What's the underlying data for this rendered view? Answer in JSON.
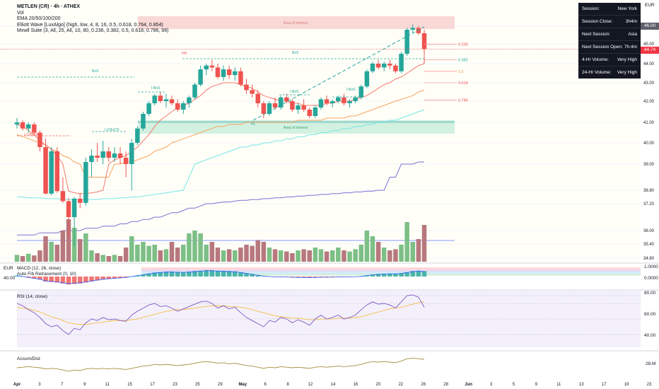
{
  "legend": {
    "title": "METLEN (CR) · 4h · ATHEX",
    "vol": "Vol",
    "ema": "EMA 20/50/100/200",
    "elliott": "Elliott Wave [LuxAlgo] (high, low, 4, 8, 16, 0.5, 0.618, 0.764, 0.854)",
    "mxwll": "Mxwll Suite (3, All, 25, All, 10, 80, 0.236, 0.382, 0.5, 0.618, 0.786, 98)"
  },
  "currency": "EUR",
  "info_panel": [
    {
      "label": "Session:",
      "value": "New York"
    },
    {
      "label": "Session Close:",
      "value": "3h4m"
    },
    {
      "label": "Next Session:",
      "value": "Asia"
    },
    {
      "label": "Next Session Open:",
      "value": "7h:4m"
    },
    {
      "label": "4-Hr Volume:",
      "value": "Very High"
    },
    {
      "label": "24-Hr Volume:",
      "value": "Very High"
    }
  ],
  "price_badges": [
    {
      "value": "46.00",
      "color": "#5d606b"
    },
    {
      "value": "44.74",
      "color": "#f23645"
    }
  ],
  "annotations": {
    "area_interest": "Area of Interest",
    "area_interest_2": "Area of Interest",
    "bos": "BoS",
    "ichoch": "I-CHoCH",
    "ibos": "I-BoS",
    "hh": "HH",
    "hl": "HL"
  },
  "colors": {
    "up": "#26a69a",
    "down": "#ef5350",
    "vol_up": "#7dbf86",
    "vol_down": "#b7787d",
    "ema20": "#f4776a",
    "ema50": "#f7a35c",
    "ema100": "#76e6e3",
    "ema200": "#7b6fd6",
    "fib": "#ef9a9a",
    "macd": "#2962ff",
    "signal": "#ff6d00",
    "rsi": "#7e57c2",
    "accum": "#a18f3f"
  },
  "macd_pane": {
    "label": "MACD (12, 26, close)",
    "label2": "Auto Fib Retracement (0, 10)",
    "left_val": "40.00",
    "left_cur": "EUR",
    "ticks": [
      "1.0000",
      "0.0000"
    ]
  },
  "rsi_pane": {
    "label": "RSI (14, close)",
    "ticks": [
      "80.00",
      "60.00",
      "40.00"
    ]
  },
  "accum_pane": {
    "label": "Accum/Dist",
    "tick": "28.M"
  },
  "chart_data": {
    "type": "candlestick",
    "title": "METLEN (CR) · 4h · ATHEX",
    "y_ticks": [
      46.0,
      45.0,
      44.0,
      43.0,
      42.0,
      41.0,
      40.0,
      39.0,
      38.8,
      37.2,
      36.0,
      35.4,
      34.8
    ],
    "y_tick_labels": [
      "46.00",
      "45.00",
      "44.00",
      "43.00",
      "42.00",
      "41.00",
      "40.00",
      "39.00",
      "38.80",
      "37.20",
      "36.00",
      "35.40",
      "34.80"
    ],
    "x_labels": [
      "Apr",
      "3",
      "7",
      "9",
      "11",
      "15",
      "17",
      "23",
      "25",
      "29",
      "May",
      "6",
      "8",
      "12",
      "14",
      "16",
      "20",
      "22",
      "26",
      "28",
      "Jun",
      "3",
      "5",
      "9",
      "11",
      "13",
      "17",
      "19",
      "23"
    ],
    "fib_levels": [
      {
        "label": "0.236",
        "value": 44.98
      },
      {
        "label": "0.382",
        "value": 44.2
      },
      {
        "label": "0.5",
        "value": 43.6
      },
      {
        "label": "0.618",
        "value": 43.0
      },
      {
        "label": "0.786",
        "value": 42.05
      }
    ],
    "candles": [
      [
        40.9,
        41.2,
        40.7,
        41.0
      ],
      [
        41.0,
        41.1,
        40.6,
        40.7
      ],
      [
        40.7,
        41.0,
        40.5,
        40.9
      ],
      [
        40.9,
        41.0,
        40.4,
        40.5
      ],
      [
        40.5,
        40.6,
        39.6,
        39.8
      ],
      [
        39.8,
        40.2,
        38.3,
        38.4
      ],
      [
        38.4,
        39.8,
        38.2,
        39.6
      ],
      [
        39.6,
        39.8,
        38.5,
        38.7
      ],
      [
        38.7,
        38.9,
        37.3,
        37.5
      ],
      [
        37.5,
        37.9,
        35.7,
        36.6
      ],
      [
        36.6,
        38.0,
        35.3,
        37.8
      ],
      [
        37.8,
        38.5,
        37.0,
        37.3
      ],
      [
        37.3,
        39.3,
        37.1,
        39.1
      ],
      [
        39.1,
        39.7,
        38.9,
        39.4
      ],
      [
        39.4,
        40.0,
        39.1,
        39.3
      ],
      [
        39.3,
        40.1,
        39.0,
        39.6
      ],
      [
        39.6,
        39.8,
        39.1,
        39.3
      ],
      [
        39.3,
        39.8,
        39.1,
        39.5
      ],
      [
        39.5,
        39.8,
        39.0,
        39.3
      ],
      [
        39.3,
        39.6,
        38.9,
        39.0
      ],
      [
        39.0,
        40.2,
        38.8,
        40.0
      ],
      [
        40.0,
        40.8,
        39.9,
        40.7
      ],
      [
        40.7,
        41.5,
        40.6,
        41.4
      ],
      [
        41.4,
        42.0,
        41.3,
        41.9
      ],
      [
        41.9,
        42.4,
        41.8,
        42.3
      ],
      [
        42.3,
        42.5,
        41.9,
        42.0
      ],
      [
        42.0,
        42.4,
        41.7,
        42.1
      ],
      [
        42.1,
        42.3,
        41.8,
        41.9
      ],
      [
        41.9,
        42.1,
        41.5,
        41.6
      ],
      [
        41.6,
        42.0,
        41.4,
        41.9
      ],
      [
        41.9,
        42.3,
        41.7,
        42.2
      ],
      [
        42.2,
        43.0,
        42.1,
        42.9
      ],
      [
        42.9,
        43.9,
        42.8,
        43.7
      ],
      [
        43.7,
        44.0,
        43.4,
        43.9
      ],
      [
        43.9,
        44.2,
        43.6,
        43.8
      ],
      [
        43.8,
        44.0,
        43.2,
        43.3
      ],
      [
        43.3,
        43.9,
        43.1,
        43.7
      ],
      [
        43.7,
        43.9,
        43.2,
        43.4
      ],
      [
        43.4,
        43.8,
        43.1,
        43.6
      ],
      [
        43.6,
        43.8,
        42.8,
        42.9
      ],
      [
        42.9,
        43.2,
        42.4,
        42.6
      ],
      [
        42.6,
        42.9,
        42.2,
        42.4
      ],
      [
        42.4,
        42.6,
        41.7,
        41.9
      ],
      [
        41.9,
        42.0,
        41.2,
        41.4
      ],
      [
        41.4,
        42.0,
        41.3,
        41.9
      ],
      [
        41.9,
        42.2,
        41.6,
        41.7
      ],
      [
        41.7,
        42.3,
        41.6,
        42.2
      ],
      [
        42.2,
        42.4,
        41.9,
        42.0
      ],
      [
        42.0,
        42.1,
        41.5,
        41.6
      ],
      [
        41.6,
        41.9,
        41.4,
        41.8
      ],
      [
        41.8,
        42.1,
        41.5,
        41.6
      ],
      [
        41.6,
        41.7,
        41.2,
        41.3
      ],
      [
        41.3,
        41.8,
        41.2,
        41.7
      ],
      [
        41.7,
        42.2,
        41.6,
        42.1
      ],
      [
        42.1,
        42.3,
        41.8,
        41.9
      ],
      [
        41.9,
        42.1,
        41.7,
        42.0
      ],
      [
        42.0,
        42.3,
        41.9,
        42.2
      ],
      [
        42.2,
        42.4,
        41.8,
        41.9
      ],
      [
        41.9,
        42.1,
        41.7,
        42.0
      ],
      [
        42.0,
        42.3,
        41.9,
        42.2
      ],
      [
        42.2,
        42.9,
        42.1,
        42.8
      ],
      [
        42.8,
        43.7,
        42.7,
        43.6
      ],
      [
        43.6,
        44.1,
        43.5,
        44.0
      ],
      [
        44.0,
        44.2,
        43.7,
        43.8
      ],
      [
        43.8,
        44.1,
        43.6,
        44.0
      ],
      [
        44.0,
        44.2,
        43.7,
        43.9
      ],
      [
        43.9,
        44.0,
        43.5,
        43.6
      ],
      [
        43.6,
        44.6,
        43.5,
        44.5
      ],
      [
        44.5,
        45.9,
        44.4,
        45.8
      ],
      [
        45.8,
        46.1,
        45.6,
        45.9
      ],
      [
        45.9,
        46.0,
        45.5,
        45.6
      ],
      [
        45.6,
        45.8,
        44.0,
        44.74
      ]
    ],
    "volume": [
      0.12,
      0.1,
      0.14,
      0.11,
      0.2,
      0.45,
      0.35,
      0.3,
      0.55,
      0.75,
      0.6,
      0.4,
      0.5,
      0.2,
      0.15,
      0.12,
      0.1,
      0.12,
      0.1,
      0.25,
      0.45,
      0.3,
      0.35,
      0.28,
      0.3,
      0.2,
      0.22,
      0.35,
      0.25,
      0.3,
      0.5,
      0.55,
      0.5,
      0.3,
      0.35,
      0.25,
      0.2,
      0.22,
      0.2,
      0.25,
      0.3,
      0.28,
      0.38,
      0.35,
      0.25,
      0.22,
      0.2,
      0.18,
      0.15,
      0.2,
      0.22,
      0.2,
      0.25,
      0.22,
      0.18,
      0.2,
      0.25,
      0.2,
      0.18,
      0.22,
      0.3,
      0.55,
      0.45,
      0.35,
      0.25,
      0.2,
      0.22,
      0.3,
      0.7,
      0.35,
      0.4,
      0.65
    ],
    "ema20": [
      40.9,
      40.8,
      40.6,
      40.4,
      40.1,
      39.9,
      39.7,
      39.4,
      39.0,
      38.7,
      38.5,
      38.4,
      38.4,
      38.5,
      38.6,
      38.8,
      39.0,
      39.2,
      39.3,
      39.4,
      39.6,
      39.8,
      40.1,
      40.4,
      40.8,
      41.1,
      41.3,
      41.5,
      41.7,
      41.8,
      41.9,
      42.1,
      42.3,
      42.6,
      42.8,
      42.9,
      43.0,
      43.0,
      43.0,
      42.9,
      42.8,
      42.7,
      42.5,
      42.3,
      42.2,
      42.1,
      42.0,
      42.0,
      41.9,
      41.9,
      41.8,
      41.8,
      41.8,
      41.8,
      41.9,
      41.9,
      42.0,
      42.0,
      42.0,
      42.1,
      42.2,
      42.3,
      42.5,
      42.7,
      42.9,
      43.0,
      43.2,
      43.3,
      43.5,
      43.7,
      43.9,
      44.0
    ],
    "ema50": [
      40.4,
      40.3,
      40.2,
      40.1,
      40.0,
      39.9,
      39.7,
      39.6,
      39.4,
      39.3,
      39.1,
      39.0,
      38.9,
      38.9,
      38.9,
      38.9,
      38.9,
      39.0,
      39.0,
      39.1,
      39.1,
      39.2,
      39.3,
      39.4,
      39.6,
      39.7,
      39.8,
      40.0,
      40.1,
      40.2,
      40.3,
      40.4,
      40.5,
      40.6,
      40.7,
      40.8,
      40.8,
      40.9,
      40.9,
      40.9,
      41.0,
      41.0,
      41.0,
      41.0,
      41.0,
      41.0,
      41.0,
      41.0,
      41.0,
      41.1,
      41.1,
      41.1,
      41.1,
      41.1,
      41.2,
      41.2,
      41.2,
      41.2,
      41.3,
      41.3,
      41.4,
      41.5,
      41.6,
      41.7,
      41.8,
      41.9,
      42.0,
      42.1,
      42.2,
      42.3,
      42.5,
      42.6
    ],
    "ema100": [
      38.0,
      38.0,
      37.9,
      37.9,
      37.9,
      37.8,
      37.8,
      37.8,
      37.7,
      37.7,
      37.7,
      37.7,
      37.7,
      37.7,
      37.7,
      37.8,
      37.8,
      37.8,
      37.9,
      37.9,
      38.0,
      38.0,
      38.1,
      38.2,
      38.3,
      38.4,
      38.5,
      38.6,
      38.7,
      38.8,
      38.9,
      39.0,
      39.1,
      39.2,
      39.3,
      39.4,
      39.5,
      39.6,
      39.7,
      39.8,
      39.8,
      39.9,
      39.9,
      40.0,
      40.0,
      40.1,
      40.1,
      40.2,
      40.2,
      40.3,
      40.3,
      40.4,
      40.4,
      40.5,
      40.5,
      40.6,
      40.6,
      40.7,
      40.7,
      40.8,
      40.8,
      40.9,
      40.9,
      41.0,
      41.0,
      41.1,
      41.1,
      41.2,
      41.3,
      41.4,
      41.5,
      41.6
    ],
    "ema200": [
      35.8,
      35.8,
      35.8,
      35.8,
      35.9,
      35.9,
      35.9,
      35.9,
      36.0,
      36.0,
      36.0,
      36.0,
      36.1,
      36.1,
      36.1,
      36.2,
      36.2,
      36.2,
      36.3,
      36.3,
      36.4,
      36.4,
      36.5,
      36.5,
      36.6,
      36.6,
      36.7,
      36.8,
      36.8,
      36.9,
      37.0,
      37.0,
      37.1,
      37.2,
      37.2,
      37.3,
      37.4,
      37.4,
      37.5,
      37.6,
      37.6,
      37.7,
      37.7,
      37.8,
      37.8,
      37.9,
      37.9,
      38.0,
      38.0,
      38.1,
      38.1,
      38.2,
      38.2,
      38.3,
      38.3,
      38.4,
      38.4,
      38.5,
      38.5,
      38.6,
      38.6,
      38.7,
      38.7,
      38.8,
      38.8,
      38.9,
      38.9,
      39.0,
      39.0,
      39.0,
      39.1,
      39.1
    ],
    "rsi": [
      70,
      67,
      62,
      58,
      52,
      44,
      40,
      42,
      35,
      30,
      38,
      36,
      45,
      50,
      48,
      52,
      49,
      50,
      48,
      47,
      55,
      60,
      64,
      68,
      70,
      66,
      67,
      64,
      60,
      63,
      66,
      69,
      72,
      73,
      70,
      64,
      67,
      63,
      65,
      58,
      52,
      48,
      44,
      40,
      48,
      46,
      52,
      50,
      45,
      49,
      46,
      42,
      50,
      55,
      50,
      52,
      55,
      50,
      52,
      55,
      62,
      68,
      72,
      69,
      70,
      68,
      64,
      72,
      80,
      81,
      78,
      65
    ],
    "rsi_ma": [
      65,
      64,
      63,
      61,
      59,
      56,
      53,
      51,
      48,
      45,
      44,
      43,
      43,
      44,
      45,
      46,
      47,
      48,
      48,
      48,
      49,
      50,
      52,
      54,
      56,
      58,
      60,
      61,
      62,
      62,
      63,
      64,
      65,
      66,
      67,
      67,
      67,
      66,
      66,
      65,
      64,
      62,
      60,
      58,
      56,
      54,
      53,
      52,
      51,
      51,
      50,
      49,
      49,
      50,
      50,
      50,
      51,
      51,
      51,
      52,
      53,
      55,
      57,
      59,
      61,
      63,
      64,
      65,
      67,
      69,
      71,
      72
    ],
    "macd": [
      0.1,
      0.0,
      -0.1,
      -0.2,
      -0.3,
      -0.5,
      -0.55,
      -0.6,
      -0.7,
      -0.8,
      -0.75,
      -0.7,
      -0.6,
      -0.5,
      -0.4,
      -0.3,
      -0.25,
      -0.2,
      -0.15,
      -0.1,
      0.0,
      0.1,
      0.2,
      0.3,
      0.4,
      0.45,
      0.5,
      0.5,
      0.48,
      0.47,
      0.5,
      0.55,
      0.6,
      0.65,
      0.65,
      0.6,
      0.58,
      0.55,
      0.52,
      0.45,
      0.35,
      0.25,
      0.15,
      0.05,
      0.0,
      -0.05,
      -0.05,
      -0.05,
      -0.08,
      -0.1,
      -0.1,
      -0.12,
      -0.1,
      -0.08,
      -0.08,
      -0.07,
      -0.05,
      -0.05,
      -0.04,
      -0.03,
      0.02,
      0.1,
      0.2,
      0.25,
      0.28,
      0.3,
      0.3,
      0.35,
      0.45,
      0.55,
      0.6,
      0.55
    ],
    "accum": [
      10,
      11,
      12,
      11,
      10,
      8,
      9,
      8,
      6,
      4,
      6,
      5,
      8,
      9,
      8,
      9,
      8,
      9,
      8,
      7,
      9,
      11,
      13,
      14,
      16,
      15,
      16,
      15,
      14,
      15,
      16,
      18,
      20,
      21,
      20,
      18,
      19,
      17,
      18,
      16,
      14,
      13,
      11,
      9,
      11,
      10,
      12,
      11,
      10,
      11,
      10,
      9,
      11,
      12,
      11,
      12,
      13,
      12,
      13,
      14,
      16,
      19,
      21,
      20,
      21,
      20,
      19,
      22,
      26,
      27,
      26,
      25
    ]
  }
}
